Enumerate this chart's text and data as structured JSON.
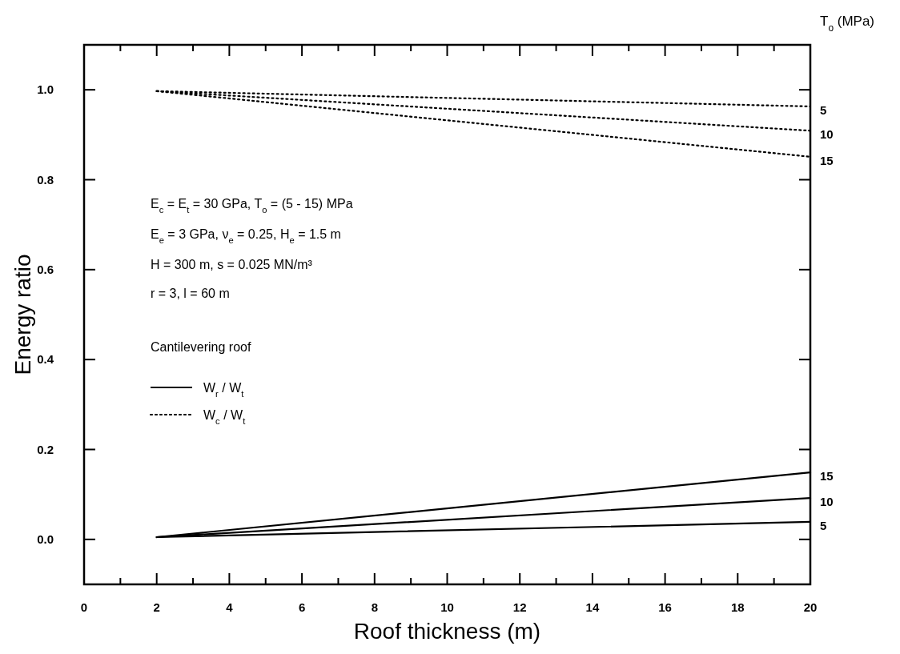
{
  "chart_data": {
    "type": "line",
    "xlabel": "Roof thickness (m)",
    "ylabel": "Energy ratio",
    "legend_title": "T$_{o}$ (MPa)",
    "xlim": [
      0,
      20
    ],
    "xticks": [
      0,
      {
        "value": 1,
        "label": null
      },
      2,
      {
        "value": 3,
        "label": null
      },
      4,
      {
        "value": 5,
        "label": null
      },
      6,
      {
        "value": 7,
        "label": null
      },
      8,
      {
        "value": 9,
        "label": null
      },
      10,
      {
        "value": 11,
        "label": null
      },
      12,
      {
        "value": 13,
        "label": null
      },
      14,
      {
        "value": 15,
        "label": null
      },
      16,
      {
        "value": 17,
        "label": null
      },
      18,
      {
        "value": 19,
        "label": null
      },
      20
    ],
    "ylim": [
      -0.1,
      1.1
    ],
    "yticks": [
      {
        "value": 0,
        "label": "0.0"
      },
      0.2,
      0.4,
      0.6,
      0.8,
      {
        "value": 1,
        "label": "1.0"
      }
    ],
    "grid": false,
    "marker": "none",
    "x": [
      2,
      20
    ],
    "series": [
      {
        "name": "5",
        "color": "#000000",
        "line_style": "solid",
        "values": [
          0.005,
          0.039
        ]
      },
      {
        "name": "10",
        "color": "#000000",
        "line_style": "solid",
        "values": [
          0.005,
          0.092
        ]
      },
      {
        "name": "15",
        "color": "#000000",
        "line_style": "solid",
        "values": [
          0.005,
          0.149
        ]
      },
      {
        "name": "5",
        "color": "#000000",
        "line_style": "dotted",
        "values": [
          0.997,
          0.963
        ]
      },
      {
        "name": "10",
        "color": "#000000",
        "line_style": "dotted",
        "values": [
          0.997,
          0.909
        ]
      },
      {
        "name": "15",
        "color": "#000000",
        "line_style": "dotted",
        "values": [
          0.997,
          0.851
        ]
      }
    ],
    "annotations": [
      "E$_{c}$ = E$_{t}$ = 30 GPa, T$_{o}$ = (5 - 15) MPa",
      "E$_{e}$ = 3 GPa, ν$_{e}$ = 0.25, H$_{e}$ = 1.5 m",
      "H = 300 m, s = 0.025 MN/m³",
      "r = 3, l = 60 m",
      "Cantilevering roof",
      "W$_{r}$ / W$_{t}$",
      "W$_{c}$ / W$_{t}$"
    ]
  }
}
